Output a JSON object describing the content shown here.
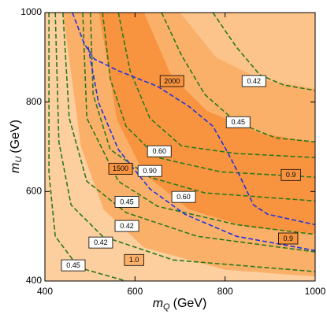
{
  "chart_data": {
    "type": "contour",
    "xlabel": {
      "symbol": "m",
      "sub": "Q",
      "unit": "(GeV)"
    },
    "ylabel": {
      "symbol": "m",
      "sub": "U",
      "unit": "(GeV)"
    },
    "xlim": [
      400,
      1000
    ],
    "ylim": [
      400,
      1000
    ],
    "xticks": [
      400,
      600,
      800,
      1000
    ],
    "yticks": [
      400,
      600,
      800,
      1000
    ],
    "background": "#fdcf9f",
    "regions": [
      {
        "color": "#fbb06a",
        "x": [
          440,
          480,
          530,
          620,
          800,
          1000,
          1000
        ],
        "y": [
          1000,
          700,
          560,
          475,
          425,
          410,
          1000
        ]
      },
      {
        "color": "#f89440",
        "x": [
          520,
          560,
          620,
          720,
          850,
          1000,
          1000
        ],
        "y": [
          1000,
          760,
          640,
          560,
          520,
          505,
          1000
        ]
      },
      {
        "color": "#fbb06a",
        "x": [
          620,
          680,
          760,
          880,
          1000,
          1000
        ],
        "y": [
          1000,
          860,
          780,
          730,
          710,
          1000
        ]
      },
      {
        "color": "#fcc48a",
        "x": [
          700,
          780,
          880,
          1000,
          1000
        ],
        "y": [
          1000,
          900,
          850,
          830,
          1000
        ]
      }
    ],
    "contours": [
      {
        "color": "#2a7a1a",
        "x": [
          773,
          825,
          877,
          930,
          1000
        ],
        "y": [
          1000,
          923,
          861,
          838,
          826
        ]
      },
      {
        "color": "#2a7a1a",
        "x": [
          659,
          703,
          755,
          825,
          912,
          1000
        ],
        "y": [
          1000,
          905,
          817,
          755,
          720,
          711
        ]
      },
      {
        "color": "#2a7a1a",
        "x": [
          563,
          589,
          633,
          703,
          825,
          1000
        ],
        "y": [
          1000,
          870,
          764,
          702,
          685,
          676
        ]
      },
      {
        "color": "#2a7a1a",
        "x": [
          528,
          545,
          580,
          650,
          790,
          1000
        ],
        "y": [
          1000,
          852,
          746,
          676,
          644,
          632
        ]
      },
      {
        "color": "#2a7a1a",
        "x": [
          501,
          507,
          545,
          633,
          755,
          1000
        ],
        "y": [
          1000,
          817,
          694,
          632,
          597,
          579
        ]
      },
      {
        "color": "#2a7a1a",
        "x": [
          484,
          493,
          563,
          650,
          825,
          1000
        ],
        "y": [
          1000,
          764,
          623,
          567,
          526,
          504
        ]
      },
      {
        "color": "#2a7a1a",
        "x": [
          440,
          454,
          493,
          580,
          738,
          1000
        ],
        "y": [
          1000,
          764,
          623,
          553,
          500,
          465
        ]
      },
      {
        "color": "#2a7a1a",
        "x": [
          423,
          431,
          458,
          528,
          685,
          1000
        ],
        "y": [
          1000,
          711,
          570,
          500,
          447,
          421
        ]
      },
      {
        "color": "#2a7a1a",
        "x": [
          409,
          409,
          423,
          475,
          580
        ],
        "y": [
          1000,
          641,
          500,
          430,
          400
        ]
      },
      {
        "color": "#2233dd",
        "x": [
          461,
          487,
          510,
          563,
          650,
          720,
          773,
          807,
          834,
          863,
          895,
          1000
        ],
        "y": [
          1000,
          931,
          896,
          870,
          835,
          790,
          746,
          685,
          632,
          570,
          549,
          526
        ]
      },
      {
        "color": "#2233dd",
        "x": [
          496,
          519,
          563,
          633,
          711,
          825,
          1000
        ],
        "y": [
          923,
          799,
          694,
          606,
          549,
          500,
          468
        ]
      }
    ],
    "annotations": [
      {
        "text": "2000",
        "x": 682,
        "y": 847,
        "fill": "#f89440"
      },
      {
        "text": "0.42",
        "x": 864,
        "y": 847,
        "fill": "#ffffff"
      },
      {
        "text": "0.45",
        "x": 829,
        "y": 755,
        "fill": "#ffffff"
      },
      {
        "text": "0.60",
        "x": 654,
        "y": 690,
        "fill": "#ffffff"
      },
      {
        "text": "0.9",
        "x": 946,
        "y": 637,
        "fill": "#f89440"
      },
      {
        "text": "1500",
        "x": 568,
        "y": 651,
        "fill": "#f89440"
      },
      {
        "text": "0.90",
        "x": 633,
        "y": 646,
        "fill": "#ffffff"
      },
      {
        "text": "0.60",
        "x": 708,
        "y": 588,
        "fill": "#ffffff"
      },
      {
        "text": "0.45",
        "x": 582,
        "y": 577,
        "fill": "#ffffff"
      },
      {
        "text": "0.42",
        "x": 582,
        "y": 523,
        "fill": "#ffffff"
      },
      {
        "text": "0.9",
        "x": 940,
        "y": 495,
        "fill": "#f89440"
      },
      {
        "text": "0.42",
        "x": 524,
        "y": 486,
        "fill": "#ffffff"
      },
      {
        "text": "1.0",
        "x": 598,
        "y": 447,
        "fill": "#fbb06a"
      },
      {
        "text": "0.45",
        "x": 463,
        "y": 435,
        "fill": "#ffffff"
      }
    ]
  }
}
